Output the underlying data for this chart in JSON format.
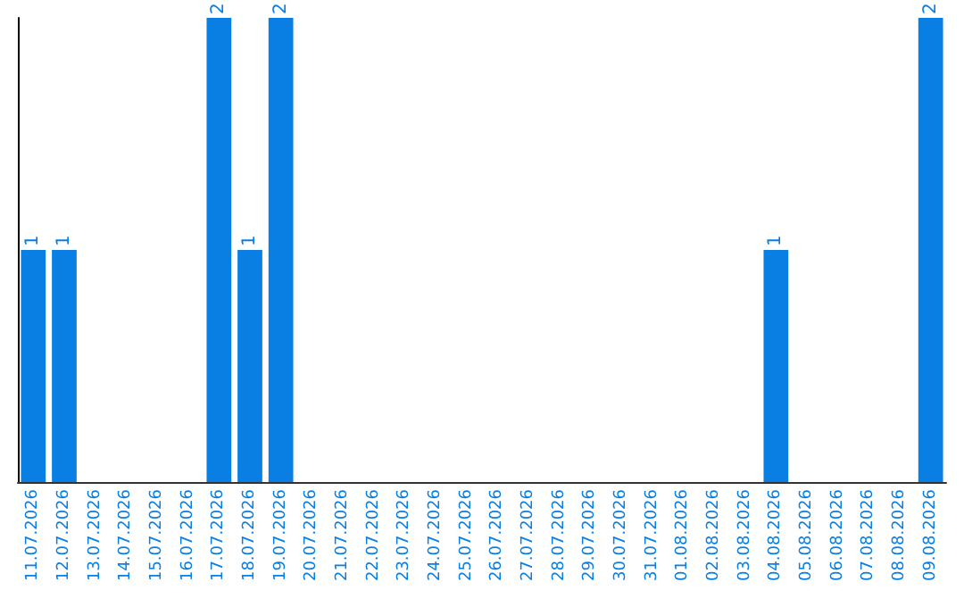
{
  "chart_data": {
    "type": "bar",
    "categories": [
      "11.07.2026",
      "12.07.2026",
      "13.07.2026",
      "14.07.2026",
      "15.07.2026",
      "16.07.2026",
      "17.07.2026",
      "18.07.2026",
      "19.07.2026",
      "20.07.2026",
      "21.07.2026",
      "22.07.2026",
      "23.07.2026",
      "24.07.2026",
      "25.07.2026",
      "26.07.2026",
      "27.07.2026",
      "28.07.2026",
      "29.07.2026",
      "30.07.2026",
      "31.07.2026",
      "01.08.2026",
      "02.08.2026",
      "03.08.2026",
      "04.08.2026",
      "05.08.2026",
      "06.08.2026",
      "07.08.2026",
      "08.08.2026",
      "09.08.2026"
    ],
    "values": [
      1,
      1,
      0,
      0,
      0,
      0,
      2,
      1,
      2,
      0,
      0,
      0,
      0,
      0,
      0,
      0,
      0,
      0,
      0,
      0,
      0,
      0,
      0,
      0,
      1,
      0,
      0,
      0,
      0,
      2
    ],
    "value_labels": [
      "1",
      "1",
      null,
      null,
      null,
      null,
      "2",
      "1",
      "2",
      null,
      null,
      null,
      null,
      null,
      null,
      null,
      null,
      null,
      null,
      null,
      null,
      null,
      null,
      null,
      "1",
      null,
      null,
      null,
      null,
      "2"
    ],
    "color": "#0a7fe3",
    "ylim": [
      0,
      2
    ],
    "tick_labels": "x"
  }
}
